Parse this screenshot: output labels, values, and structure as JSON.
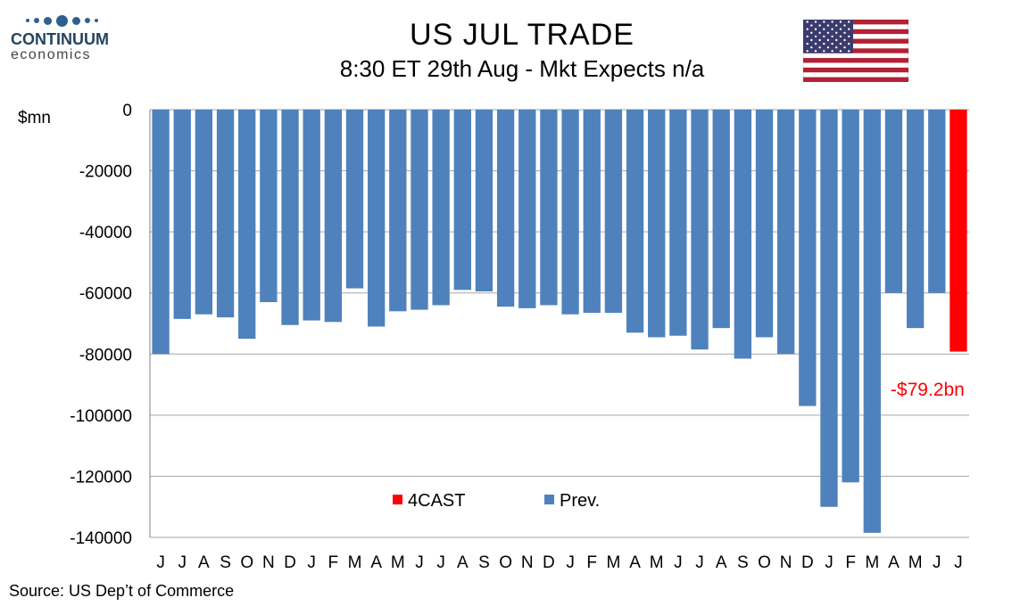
{
  "logo": {
    "name": "CONTINUUM",
    "sub": "economics"
  },
  "flag": {
    "icon": "us-flag-icon"
  },
  "source": "Source: US Dep’t of Commerce",
  "colors": {
    "prev": "#4f81bd",
    "forecast": "#ff0000",
    "grid": "#a6a6a6"
  },
  "chart_data": {
    "type": "bar",
    "title": "US JUL TRADE",
    "subtitle": "8:30 ET 29th Aug - Mkt Expects n/a",
    "ylabel": "$mn",
    "ylim": [
      -140000,
      0
    ],
    "yticks": [
      "0",
      "-20000",
      "-40000",
      "-60000",
      "-80000",
      "-100000",
      "-120000",
      "-140000"
    ],
    "ytick_values": [
      0,
      -20000,
      -40000,
      -60000,
      -80000,
      -100000,
      -120000,
      -140000
    ],
    "grid": true,
    "legend_position": "bottom-center",
    "categories": [
      "J",
      "J",
      "A",
      "S",
      "O",
      "N",
      "D",
      "J",
      "F",
      "M",
      "A",
      "M",
      "J",
      "J",
      "A",
      "S",
      "O",
      "N",
      "D",
      "J",
      "F",
      "M",
      "A",
      "M",
      "J",
      "J",
      "A",
      "S",
      "O",
      "N",
      "D",
      "J",
      "F",
      "M",
      "A",
      "M",
      "J",
      "J"
    ],
    "series": [
      {
        "name": "Prev.",
        "values": [
          -80000,
          -68500,
          -67000,
          -68000,
          -75000,
          -63000,
          -70500,
          -69000,
          -69500,
          -58500,
          -71000,
          -66000,
          -65500,
          -64000,
          -59000,
          -59500,
          -64500,
          -65000,
          -64000,
          -67000,
          -66500,
          -66500,
          -73000,
          -74500,
          -74000,
          -78500,
          -71500,
          -81500,
          -74500,
          -80000,
          -97000,
          -130000,
          -122000,
          -138500,
          -60000,
          -71500,
          -60000,
          null
        ]
      },
      {
        "name": "4CAST",
        "values": [
          null,
          null,
          null,
          null,
          null,
          null,
          null,
          null,
          null,
          null,
          null,
          null,
          null,
          null,
          null,
          null,
          null,
          null,
          null,
          null,
          null,
          null,
          null,
          null,
          null,
          null,
          null,
          null,
          null,
          null,
          null,
          null,
          null,
          null,
          null,
          null,
          null,
          -79200
        ]
      }
    ],
    "annotations": [
      {
        "text": "-$79.2bn",
        "category_index": 37,
        "value": -79200
      }
    ]
  }
}
